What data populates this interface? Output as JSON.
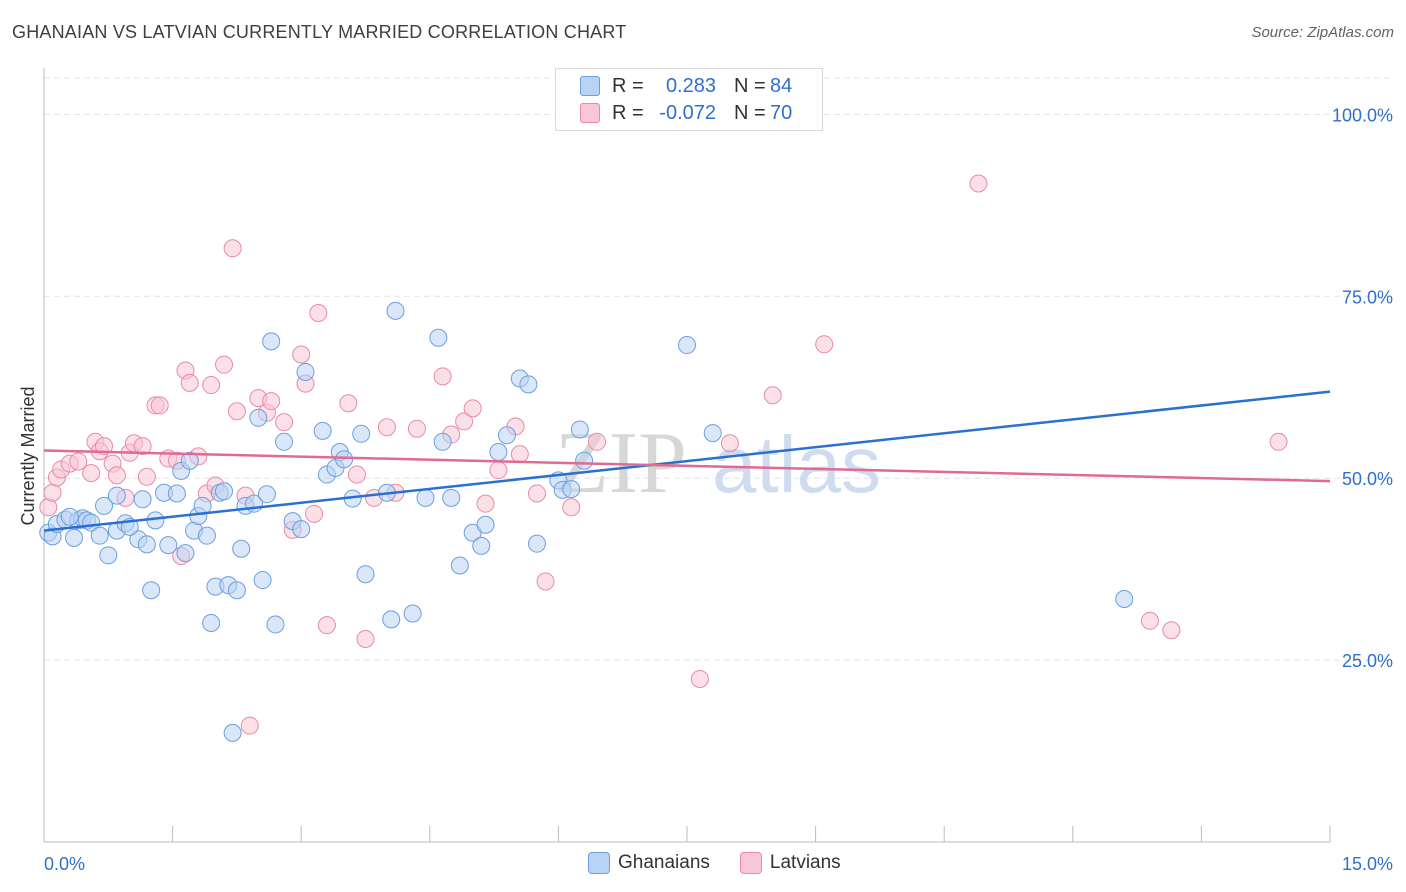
{
  "header": {
    "title": "GHANAIAN VS LATVIAN CURRENTLY MARRIED CORRELATION CHART",
    "source": "Source: ZipAtlas.com"
  },
  "legend_top": {
    "rows": [
      {
        "r_label": "R =",
        "r_value": "0.283",
        "n_label": "N =",
        "n_value": "84"
      },
      {
        "r_label": "R =",
        "r_value": "-0.072",
        "n_label": "N =",
        "n_value": "70"
      }
    ]
  },
  "legend_bottom": {
    "items": [
      {
        "label": "Ghanaians"
      },
      {
        "label": "Latvians"
      }
    ]
  },
  "watermark": {
    "zip": "ZIP",
    "atlas": "atlas"
  },
  "colors": {
    "blue_fill": "#b9d3f4",
    "blue_stroke": "#6a9fe0",
    "blue_line": "#2b6fd1",
    "pink_fill": "#f8c7d5",
    "pink_stroke": "#e98aa6",
    "pink_line": "#e06a94",
    "tick_text": "#2f6fd0",
    "grid": "#e3e3e3"
  },
  "chart_data": {
    "type": "scatter",
    "title": "GHANAIAN VS LATVIAN CURRENTLY MARRIED CORRELATION CHART",
    "xlabel": "",
    "ylabel": "Currently Married",
    "xlim": [
      0,
      15
    ],
    "ylim": [
      0,
      105
    ],
    "x_tick_labels": [
      "0.0%",
      "15.0%"
    ],
    "y_ticks": [
      25,
      50,
      75,
      100
    ],
    "y_tick_labels": [
      "25.0%",
      "50.0%",
      "75.0%",
      "100.0%"
    ],
    "series": [
      {
        "name": "Ghanaians",
        "r": 0.283,
        "n": 84,
        "trend": {
          "x": [
            0,
            15
          ],
          "y": [
            42.8,
            61.9
          ]
        },
        "points": [
          [
            0.05,
            42.5
          ],
          [
            0.1,
            42.0
          ],
          [
            0.15,
            43.7
          ],
          [
            0.25,
            44.3
          ],
          [
            0.35,
            41.8
          ],
          [
            0.4,
            44.2
          ],
          [
            0.45,
            44.5
          ],
          [
            0.5,
            44.2
          ],
          [
            0.55,
            43.9
          ],
          [
            0.65,
            42.1
          ],
          [
            0.7,
            46.2
          ],
          [
            0.75,
            39.4
          ],
          [
            0.85,
            42.8
          ],
          [
            0.85,
            47.6
          ],
          [
            0.95,
            43.8
          ],
          [
            1.1,
            41.6
          ],
          [
            1.15,
            47.1
          ],
          [
            1.2,
            40.9
          ],
          [
            1.25,
            34.6
          ],
          [
            1.3,
            44.2
          ],
          [
            1.4,
            48.0
          ],
          [
            1.45,
            40.8
          ],
          [
            1.55,
            47.9
          ],
          [
            1.6,
            51.0
          ],
          [
            1.65,
            39.7
          ],
          [
            1.75,
            42.8
          ],
          [
            1.8,
            44.8
          ],
          [
            1.85,
            46.2
          ],
          [
            1.9,
            42.1
          ],
          [
            1.95,
            30.1
          ],
          [
            2.0,
            35.1
          ],
          [
            2.05,
            48.0
          ],
          [
            2.15,
            35.3
          ],
          [
            2.25,
            34.6
          ],
          [
            2.3,
            40.3
          ],
          [
            2.35,
            46.2
          ],
          [
            2.45,
            46.5
          ],
          [
            2.5,
            58.3
          ],
          [
            2.55,
            36.0
          ],
          [
            2.6,
            47.8
          ],
          [
            2.65,
            68.8
          ],
          [
            2.7,
            29.9
          ],
          [
            2.8,
            55.0
          ],
          [
            2.9,
            44.1
          ],
          [
            3.0,
            43.0
          ],
          [
            3.05,
            64.6
          ],
          [
            3.25,
            56.5
          ],
          [
            3.3,
            50.5
          ],
          [
            3.4,
            51.4
          ],
          [
            3.45,
            53.6
          ],
          [
            3.5,
            52.6
          ],
          [
            3.6,
            47.2
          ],
          [
            3.7,
            56.1
          ],
          [
            3.75,
            36.8
          ],
          [
            4.0,
            48.0
          ],
          [
            4.05,
            30.6
          ],
          [
            4.1,
            73.0
          ],
          [
            4.3,
            31.4
          ],
          [
            4.45,
            47.3
          ],
          [
            4.6,
            69.3
          ],
          [
            4.65,
            55.0
          ],
          [
            4.75,
            47.3
          ],
          [
            4.85,
            38.0
          ],
          [
            5.0,
            42.5
          ],
          [
            5.1,
            40.7
          ],
          [
            5.15,
            43.6
          ],
          [
            5.3,
            53.6
          ],
          [
            5.4,
            55.9
          ],
          [
            5.55,
            63.7
          ],
          [
            5.65,
            62.9
          ],
          [
            5.75,
            41.0
          ],
          [
            6.0,
            49.7
          ],
          [
            6.05,
            48.4
          ],
          [
            6.15,
            48.5
          ],
          [
            6.25,
            56.7
          ],
          [
            6.3,
            52.4
          ],
          [
            7.5,
            68.3
          ],
          [
            7.8,
            56.2
          ],
          [
            12.6,
            33.4
          ],
          [
            2.2,
            15.0
          ],
          [
            0.3,
            44.7
          ],
          [
            1.0,
            43.3
          ],
          [
            2.1,
            48.2
          ],
          [
            1.7,
            52.4
          ]
        ]
      },
      {
        "name": "Latvians",
        "r": -0.072,
        "n": 70,
        "trend": {
          "x": [
            0,
            15
          ],
          "y": [
            53.8,
            49.6
          ]
        },
        "points": [
          [
            0.05,
            46.0
          ],
          [
            0.1,
            48.0
          ],
          [
            0.15,
            50.1
          ],
          [
            0.2,
            51.2
          ],
          [
            0.3,
            52.0
          ],
          [
            0.4,
            52.3
          ],
          [
            0.55,
            50.7
          ],
          [
            0.6,
            55.0
          ],
          [
            0.65,
            53.7
          ],
          [
            0.7,
            54.4
          ],
          [
            0.8,
            52.0
          ],
          [
            0.85,
            50.4
          ],
          [
            0.95,
            47.3
          ],
          [
            1.0,
            53.5
          ],
          [
            1.05,
            54.8
          ],
          [
            1.15,
            54.4
          ],
          [
            1.2,
            50.2
          ],
          [
            1.3,
            60.0
          ],
          [
            1.35,
            60.0
          ],
          [
            1.45,
            52.7
          ],
          [
            1.55,
            52.4
          ],
          [
            1.6,
            39.3
          ],
          [
            1.65,
            64.8
          ],
          [
            1.7,
            63.1
          ],
          [
            1.8,
            53.0
          ],
          [
            1.9,
            47.9
          ],
          [
            1.95,
            62.8
          ],
          [
            2.0,
            49.0
          ],
          [
            2.1,
            65.6
          ],
          [
            2.2,
            81.6
          ],
          [
            2.25,
            59.2
          ],
          [
            2.35,
            47.6
          ],
          [
            2.4,
            16.0
          ],
          [
            2.5,
            61.0
          ],
          [
            2.6,
            59.0
          ],
          [
            2.65,
            60.6
          ],
          [
            2.8,
            57.7
          ],
          [
            2.9,
            42.9
          ],
          [
            3.0,
            67.0
          ],
          [
            3.05,
            63.0
          ],
          [
            3.15,
            45.1
          ],
          [
            3.2,
            72.7
          ],
          [
            3.3,
            29.8
          ],
          [
            3.55,
            60.3
          ],
          [
            3.65,
            50.5
          ],
          [
            3.75,
            27.9
          ],
          [
            3.85,
            47.3
          ],
          [
            4.0,
            57.0
          ],
          [
            4.1,
            48.0
          ],
          [
            4.35,
            56.8
          ],
          [
            4.65,
            64.0
          ],
          [
            4.75,
            56.0
          ],
          [
            4.9,
            57.8
          ],
          [
            5.0,
            59.6
          ],
          [
            5.15,
            46.5
          ],
          [
            5.3,
            51.1
          ],
          [
            5.5,
            57.1
          ],
          [
            5.55,
            53.3
          ],
          [
            5.75,
            47.9
          ],
          [
            5.85,
            35.8
          ],
          [
            6.15,
            46.0
          ],
          [
            6.45,
            55.0
          ],
          [
            7.65,
            22.4
          ],
          [
            8.0,
            54.8
          ],
          [
            8.5,
            61.4
          ],
          [
            9.1,
            68.4
          ],
          [
            10.9,
            90.5
          ],
          [
            12.9,
            30.4
          ],
          [
            13.15,
            29.1
          ],
          [
            14.4,
            55.0
          ]
        ]
      }
    ]
  }
}
